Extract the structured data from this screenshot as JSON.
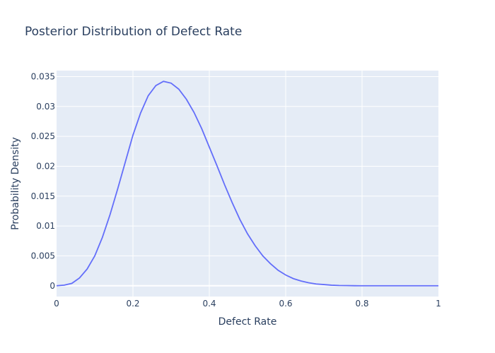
{
  "chart_data": {
    "type": "line",
    "title": "Posterior Distribution of Defect Rate",
    "xlabel": "Defect Rate",
    "ylabel": "Probability Density",
    "xlim": [
      0,
      1
    ],
    "ylim": [
      -0.0018,
      0.036
    ],
    "x_ticks": [
      0,
      0.2,
      0.4,
      0.6,
      0.8,
      1
    ],
    "x_tick_labels": [
      "0",
      "0.2",
      "0.4",
      "0.6",
      "0.8",
      "1"
    ],
    "y_ticks": [
      0,
      0.005,
      0.01,
      0.015,
      0.02,
      0.025,
      0.03,
      0.035
    ],
    "y_tick_labels": [
      "0",
      "0.005",
      "0.01",
      "0.015",
      "0.02",
      "0.025",
      "0.03",
      "0.035"
    ],
    "grid": true,
    "legend": false,
    "colors": {
      "line": "#636efa",
      "plot_bg": "#e5ecf6",
      "grid": "#ffffff",
      "text": "#2a3f5f"
    },
    "series": [
      {
        "x": [
          0,
          0.02,
          0.04,
          0.06,
          0.08,
          0.1,
          0.12,
          0.14,
          0.16,
          0.18,
          0.2,
          0.22,
          0.24,
          0.26,
          0.28,
          0.3,
          0.32,
          0.34,
          0.36,
          0.38,
          0.4,
          0.42,
          0.44,
          0.46,
          0.48,
          0.5,
          0.52,
          0.54,
          0.56,
          0.58,
          0.6,
          0.62,
          0.64,
          0.66,
          0.68,
          0.7,
          0.72,
          0.74,
          0.76,
          0.78,
          0.8,
          0.85,
          0.9,
          0.95,
          1.0
        ],
        "y": [
          0,
          0.0001,
          0.0004,
          0.0013,
          0.0028,
          0.005,
          0.0081,
          0.0119,
          0.0162,
          0.0207,
          0.0252,
          0.0289,
          0.0318,
          0.0335,
          0.0342,
          0.0339,
          0.0329,
          0.0312,
          0.029,
          0.0263,
          0.0232,
          0.0201,
          0.0169,
          0.0139,
          0.0111,
          0.0087,
          0.0067,
          0.005,
          0.0037,
          0.0026,
          0.0018,
          0.0012,
          0.0008,
          0.0005,
          0.0003,
          0.0002,
          0.0001,
          5e-05,
          3e-05,
          1e-05,
          0,
          0,
          0,
          0,
          0
        ]
      }
    ]
  }
}
